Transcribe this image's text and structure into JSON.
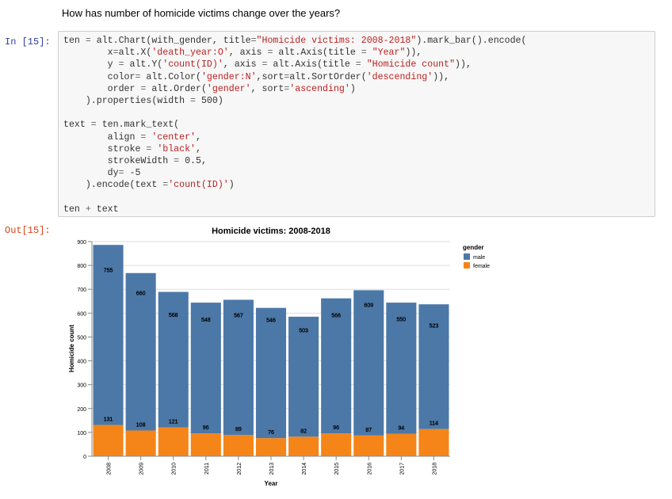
{
  "notebook": {
    "question": "How has number of homicide victims change over the years?",
    "in_prompt": "In [15]:",
    "out_prompt": "Out[15]:",
    "code_lines": [
      [
        [
          "ten ",
          ""
        ],
        [
          "=",
          "o"
        ],
        [
          " alt.Chart(with_gender, title",
          ""
        ],
        [
          "=",
          "o"
        ],
        [
          "\"Homicide victims: 2008-2018\"",
          "s"
        ],
        [
          ").mark_bar().encode(",
          ""
        ]
      ],
      [
        [
          "        x",
          ""
        ],
        [
          "=",
          "o"
        ],
        [
          "alt.X(",
          ""
        ],
        [
          "'death_year:O'",
          "s"
        ],
        [
          ", axis ",
          ""
        ],
        [
          "=",
          "o"
        ],
        [
          " alt.Axis(title ",
          ""
        ],
        [
          "=",
          "o"
        ],
        [
          " ",
          ""
        ],
        [
          "\"Year\"",
          "s"
        ],
        [
          ")),",
          ""
        ]
      ],
      [
        [
          "        y ",
          ""
        ],
        [
          "=",
          "o"
        ],
        [
          " alt.Y(",
          ""
        ],
        [
          "'count(ID)'",
          "s"
        ],
        [
          ", axis ",
          ""
        ],
        [
          "=",
          "o"
        ],
        [
          " alt.Axis(title ",
          ""
        ],
        [
          "=",
          "o"
        ],
        [
          " ",
          ""
        ],
        [
          "\"Homicide count\"",
          "s"
        ],
        [
          ")),",
          ""
        ]
      ],
      [
        [
          "        color",
          ""
        ],
        [
          "=",
          "o"
        ],
        [
          " alt.Color(",
          ""
        ],
        [
          "'gender:N'",
          "s"
        ],
        [
          ",sort",
          ""
        ],
        [
          "=",
          "o"
        ],
        [
          "alt.SortOrder(",
          ""
        ],
        [
          "'descending'",
          "s"
        ],
        [
          ")),",
          ""
        ]
      ],
      [
        [
          "        order ",
          ""
        ],
        [
          "=",
          "o"
        ],
        [
          " alt.Order(",
          ""
        ],
        [
          "'gender'",
          "s"
        ],
        [
          ", sort",
          ""
        ],
        [
          "=",
          "o"
        ],
        [
          "'ascending'",
          "s"
        ],
        [
          ")",
          ""
        ]
      ],
      [
        [
          "    ).properties(width ",
          ""
        ],
        [
          "=",
          "o"
        ],
        [
          " 500)",
          ""
        ]
      ],
      [
        [
          "",
          ""
        ]
      ],
      [
        [
          "text ",
          ""
        ],
        [
          "=",
          "o"
        ],
        [
          " ten.mark_text(",
          ""
        ]
      ],
      [
        [
          "        align ",
          ""
        ],
        [
          "=",
          "o"
        ],
        [
          " ",
          ""
        ],
        [
          "'center'",
          "s"
        ],
        [
          ",",
          ""
        ]
      ],
      [
        [
          "        stroke ",
          ""
        ],
        [
          "=",
          "o"
        ],
        [
          " ",
          ""
        ],
        [
          "'black'",
          "s"
        ],
        [
          ",",
          ""
        ]
      ],
      [
        [
          "        strokeWidth ",
          ""
        ],
        [
          "=",
          "o"
        ],
        [
          " 0.5,",
          ""
        ]
      ],
      [
        [
          "        dy",
          ""
        ],
        [
          "=",
          "o"
        ],
        [
          " -5",
          ""
        ]
      ],
      [
        [
          "    ).encode(text ",
          ""
        ],
        [
          "=",
          "o"
        ],
        [
          "'count(ID)'",
          "s"
        ],
        [
          ")",
          ""
        ]
      ],
      [
        [
          "",
          ""
        ]
      ],
      [
        [
          "ten ",
          ""
        ],
        [
          "+",
          "o"
        ],
        [
          " text",
          ""
        ]
      ]
    ]
  },
  "chart_data": {
    "type": "bar",
    "stacked": true,
    "title": "Homicide victims: 2008-2018",
    "xlabel": "Year",
    "ylabel": "Homicide count",
    "ylim": [
      0,
      900
    ],
    "yticks": [
      0,
      100,
      200,
      300,
      400,
      500,
      600,
      700,
      800,
      900
    ],
    "grid": true,
    "categories": [
      "2008",
      "2009",
      "2010",
      "2011",
      "2012",
      "2013",
      "2014",
      "2015",
      "2016",
      "2017",
      "2018"
    ],
    "series": [
      {
        "name": "female",
        "values": [
          131,
          108,
          121,
          96,
          89,
          76,
          82,
          96,
          87,
          94,
          114
        ]
      },
      {
        "name": "male",
        "values": [
          755,
          660,
          568,
          548,
          567,
          546,
          503,
          566,
          609,
          550,
          523
        ]
      }
    ],
    "legend": {
      "title": "gender",
      "entries": [
        "male",
        "female"
      ],
      "position": "right"
    },
    "colors": {
      "male": "#4c78a8",
      "female": "#f58518"
    }
  }
}
